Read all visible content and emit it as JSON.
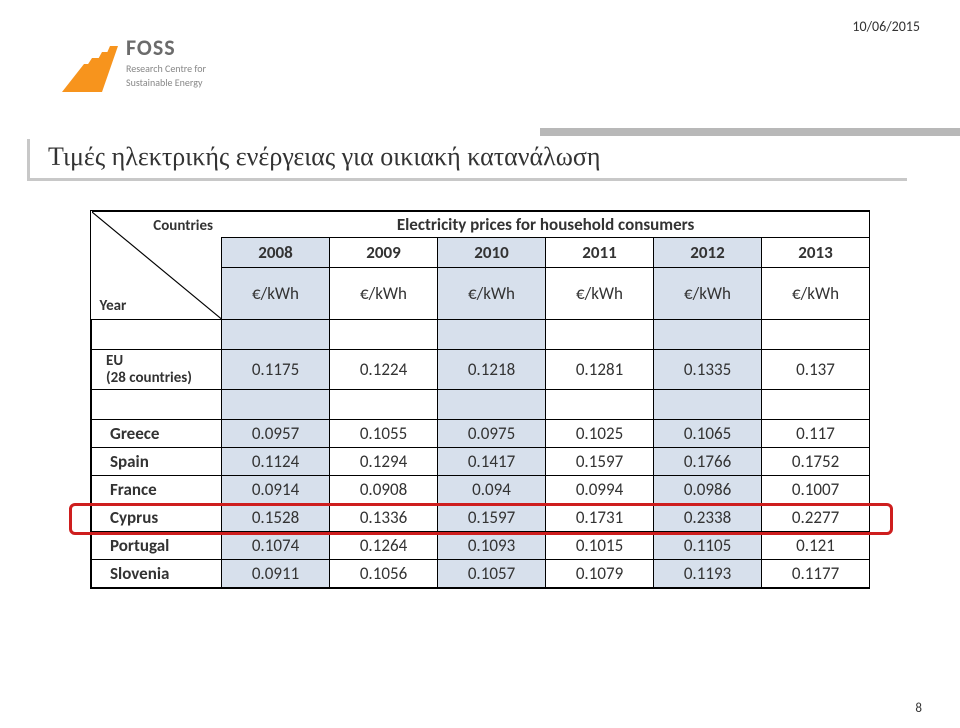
{
  "meta": {
    "date": "10/06/2015",
    "page_number": "8"
  },
  "logo": {
    "name": "FOSS",
    "sub1": "Research Centre for",
    "sub2": "Sustainable Energy",
    "ray_color": "#f7941d",
    "text_color": "#6b6b6b"
  },
  "title": "Τιμές ηλεκτρικής ενέργειας για οικιακή κατανάλωση",
  "table": {
    "subtitle": "Electricity prices for household consumers",
    "corner_top": "Countries",
    "corner_bottom": "Year",
    "years": [
      "2008",
      "2009",
      "2010",
      "2011",
      "2012",
      "2013"
    ],
    "unit": "€/kWh",
    "shaded_cols": [
      true,
      false,
      true,
      false,
      true,
      false
    ],
    "year_bg": "#d7e0ec",
    "rows": [
      {
        "label": "EU (28 countries)",
        "values": [
          "0.1175",
          "0.1224",
          "0.1218",
          "0.1281",
          "0.1335",
          "0.137"
        ],
        "eu": true
      },
      {
        "label": "Greece",
        "values": [
          "0.0957",
          "0.1055",
          "0.0975",
          "0.1025",
          "0.1065",
          "0.117"
        ]
      },
      {
        "label": "Spain",
        "values": [
          "0.1124",
          "0.1294",
          "0.1417",
          "0.1597",
          "0.1766",
          "0.1752"
        ]
      },
      {
        "label": "France",
        "values": [
          "0.0914",
          "0.0908",
          "0.094",
          "0.0994",
          "0.0986",
          "0.1007"
        ]
      },
      {
        "label": "Cyprus",
        "values": [
          "0.1528",
          "0.1336",
          "0.1597",
          "0.1731",
          "0.2338",
          "0.2277"
        ],
        "highlight": true
      },
      {
        "label": "Portugal",
        "values": [
          "0.1074",
          "0.1264",
          "0.1093",
          "0.1015",
          "0.1105",
          "0.121"
        ]
      },
      {
        "label": "Slovenia",
        "values": [
          "0.0911",
          "0.1056",
          "0.1057",
          "0.1079",
          "0.1193",
          "0.1177"
        ]
      }
    ]
  },
  "colors": {
    "highlight_border": "#ce1e1e",
    "title_shadow": "#c8c8c8",
    "gray_bar": "#b8b8b8"
  }
}
